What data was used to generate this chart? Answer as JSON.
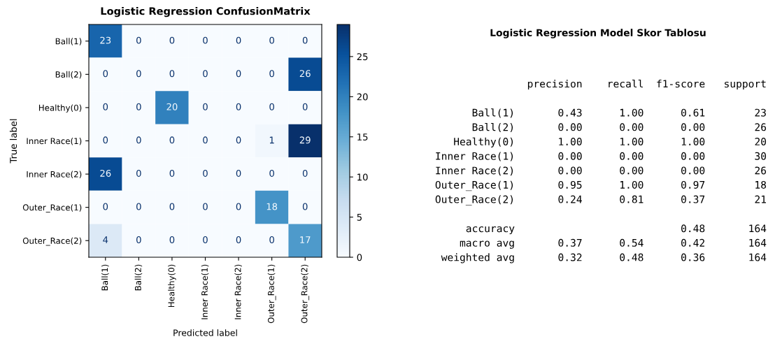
{
  "chart_data": [
    {
      "type": "heatmap",
      "title": "Logistic Regression ConfusionMatrix",
      "xlabel": "Predicted label",
      "ylabel": "True label",
      "categories": [
        "Ball(1)",
        "Ball(2)",
        "Healthy(0)",
        "Inner Race(1)",
        "Inner Race(2)",
        "Outer_Race(1)",
        "Outer_Race(2)"
      ],
      "y_categories": [
        "Ball(1)",
        "Ball(2)",
        "Healthy(0)",
        "Inner Race(1)",
        "Inner Race(2)",
        "Outer_Race(1)",
        "Outer_Race(2)"
      ],
      "cells": [
        [
          23,
          0,
          0,
          0,
          0,
          0,
          0
        ],
        [
          0,
          0,
          0,
          0,
          0,
          0,
          26
        ],
        [
          0,
          0,
          20,
          0,
          0,
          0,
          0
        ],
        [
          0,
          0,
          0,
          0,
          0,
          1,
          29
        ],
        [
          26,
          0,
          0,
          0,
          0,
          0,
          0
        ],
        [
          0,
          0,
          0,
          0,
          0,
          18,
          0
        ],
        [
          4,
          0,
          0,
          0,
          0,
          0,
          17
        ]
      ],
      "clim": [
        0,
        29
      ],
      "cticks": [
        0,
        5,
        10,
        15,
        20,
        25
      ],
      "data_labels": true
    },
    {
      "type": "other",
      "title": "Logistic Regression Model Skor Tablosu",
      "annotations": [
        "precision    recall  f1-score   support",
        "Ball(1)       0.43      1.00      0.61        23",
        "Ball(2)       0.00      0.00      0.00        26",
        "Healthy(0)       1.00      1.00      1.00        20",
        "Inner Race(1)       0.00      0.00      0.00        30",
        "Inner Race(2)       0.00      0.00      0.00        26",
        "Outer_Race(1)       0.95      1.00      0.97        18",
        "Outer_Race(2)       0.24      0.81      0.37        21",
        "accuracy                           0.48       164",
        "macro avg       0.37      0.54      0.42       164",
        "weighted avg       0.32      0.48      0.36       164"
      ]
    }
  ]
}
